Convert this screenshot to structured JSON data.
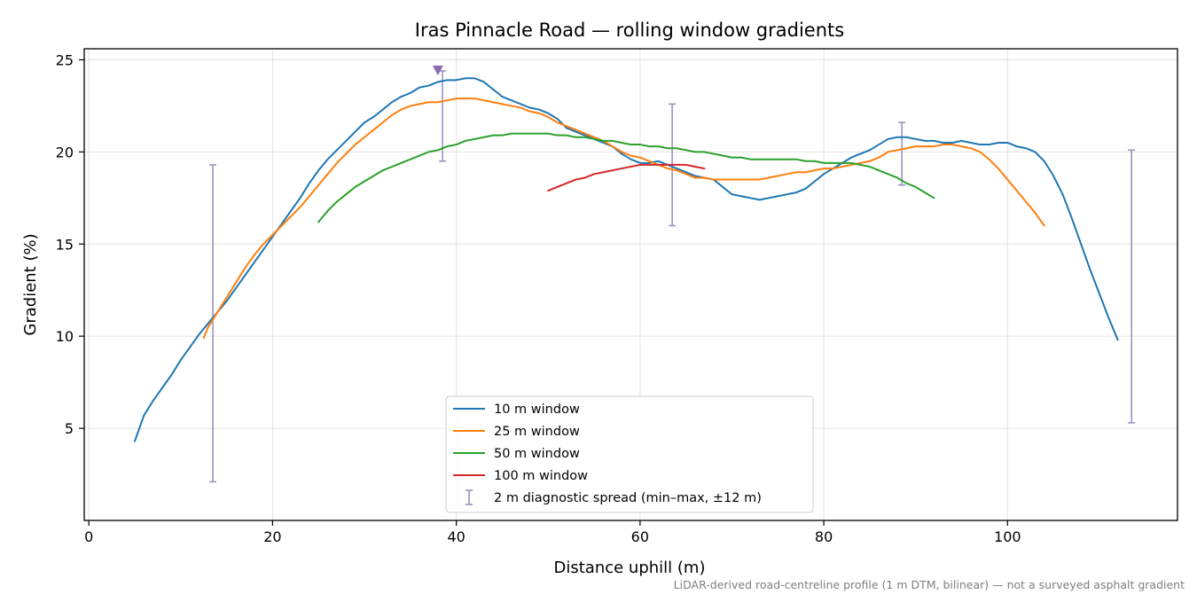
{
  "chart_data": {
    "type": "line",
    "title": "Iras Pinnacle Road — rolling window gradients",
    "xlabel": "Distance uphill (m)",
    "ylabel": "Gradient (%)",
    "xlim": [
      -0.5,
      118.5
    ],
    "ylim": [
      0.0,
      25.6
    ],
    "xticks": [
      0,
      20,
      40,
      60,
      80,
      100
    ],
    "yticks": [
      5,
      10,
      15,
      20,
      25
    ],
    "grid": true,
    "legend_position": "bottom-center",
    "caption": "LiDAR-derived road-centreline profile (1 m DTM, bilinear) — not a surveyed asphalt gradient",
    "series": [
      {
        "name": "10 m window",
        "color": "#1f77b4",
        "points": [
          [
            5,
            4.3
          ],
          [
            6,
            5.7
          ],
          [
            7,
            6.5
          ],
          [
            8,
            7.2
          ],
          [
            9,
            7.9
          ],
          [
            10,
            8.7
          ],
          [
            11,
            9.4
          ],
          [
            12,
            10.1
          ],
          [
            13,
            10.7
          ],
          [
            14,
            11.3
          ],
          [
            15,
            11.9
          ],
          [
            16,
            12.6
          ],
          [
            17,
            13.3
          ],
          [
            18,
            14.0
          ],
          [
            19,
            14.7
          ],
          [
            20,
            15.4
          ],
          [
            21,
            16.1
          ],
          [
            22,
            16.8
          ],
          [
            23,
            17.5
          ],
          [
            24,
            18.3
          ],
          [
            25,
            19.0
          ],
          [
            26,
            19.6
          ],
          [
            27,
            20.1
          ],
          [
            28,
            20.6
          ],
          [
            29,
            21.1
          ],
          [
            30,
            21.6
          ],
          [
            31,
            21.9
          ],
          [
            32,
            22.3
          ],
          [
            33,
            22.7
          ],
          [
            34,
            23.0
          ],
          [
            35,
            23.2
          ],
          [
            36,
            23.5
          ],
          [
            37,
            23.6
          ],
          [
            38,
            23.8
          ],
          [
            39,
            23.9
          ],
          [
            40,
            23.9
          ],
          [
            41,
            24.0
          ],
          [
            42,
            24.0
          ],
          [
            43,
            23.8
          ],
          [
            44,
            23.4
          ],
          [
            45,
            23.0
          ],
          [
            46,
            22.8
          ],
          [
            47,
            22.6
          ],
          [
            48,
            22.4
          ],
          [
            49,
            22.3
          ],
          [
            50,
            22.1
          ],
          [
            51,
            21.8
          ],
          [
            52,
            21.3
          ],
          [
            53,
            21.1
          ],
          [
            54,
            20.9
          ],
          [
            55,
            20.7
          ],
          [
            56,
            20.5
          ],
          [
            57,
            20.3
          ],
          [
            58,
            19.9
          ],
          [
            59,
            19.6
          ],
          [
            60,
            19.4
          ],
          [
            61,
            19.4
          ],
          [
            62,
            19.5
          ],
          [
            63,
            19.3
          ],
          [
            64,
            19.1
          ],
          [
            65,
            18.9
          ],
          [
            66,
            18.7
          ],
          [
            67,
            18.6
          ],
          [
            68,
            18.5
          ],
          [
            69,
            18.1
          ],
          [
            70,
            17.7
          ],
          [
            71,
            17.6
          ],
          [
            72,
            17.5
          ],
          [
            73,
            17.4
          ],
          [
            74,
            17.5
          ],
          [
            75,
            17.6
          ],
          [
            76,
            17.7
          ],
          [
            77,
            17.8
          ],
          [
            78,
            18.0
          ],
          [
            79,
            18.4
          ],
          [
            80,
            18.8
          ],
          [
            81,
            19.1
          ],
          [
            82,
            19.4
          ],
          [
            83,
            19.7
          ],
          [
            84,
            19.9
          ],
          [
            85,
            20.1
          ],
          [
            86,
            20.4
          ],
          [
            87,
            20.7
          ],
          [
            88,
            20.8
          ],
          [
            89,
            20.8
          ],
          [
            90,
            20.7
          ],
          [
            91,
            20.6
          ],
          [
            92,
            20.6
          ],
          [
            93,
            20.5
          ],
          [
            94,
            20.5
          ],
          [
            95,
            20.6
          ],
          [
            96,
            20.5
          ],
          [
            97,
            20.4
          ],
          [
            98,
            20.4
          ],
          [
            99,
            20.5
          ],
          [
            100,
            20.5
          ],
          [
            101,
            20.3
          ],
          [
            102,
            20.2
          ],
          [
            103,
            20.0
          ],
          [
            104,
            19.5
          ],
          [
            105,
            18.7
          ],
          [
            106,
            17.7
          ],
          [
            107,
            16.4
          ],
          [
            108,
            15.0
          ],
          [
            109,
            13.6
          ],
          [
            110,
            12.3
          ],
          [
            111,
            11.0
          ],
          [
            112,
            9.8
          ]
        ]
      },
      {
        "name": "25 m window",
        "color": "#ff7f0e",
        "points": [
          [
            12.5,
            9.9
          ],
          [
            13,
            10.5
          ],
          [
            14,
            11.3
          ],
          [
            15,
            12.1
          ],
          [
            16,
            12.9
          ],
          [
            17,
            13.7
          ],
          [
            18,
            14.4
          ],
          [
            19,
            15.0
          ],
          [
            20,
            15.5
          ],
          [
            21,
            16.0
          ],
          [
            22,
            16.5
          ],
          [
            23,
            17.0
          ],
          [
            24,
            17.6
          ],
          [
            25,
            18.2
          ],
          [
            26,
            18.8
          ],
          [
            27,
            19.4
          ],
          [
            28,
            19.9
          ],
          [
            29,
            20.4
          ],
          [
            30,
            20.8
          ],
          [
            31,
            21.2
          ],
          [
            32,
            21.6
          ],
          [
            33,
            22.0
          ],
          [
            34,
            22.3
          ],
          [
            35,
            22.5
          ],
          [
            36,
            22.6
          ],
          [
            37,
            22.7
          ],
          [
            38,
            22.7
          ],
          [
            39,
            22.8
          ],
          [
            40,
            22.9
          ],
          [
            41,
            22.9
          ],
          [
            42,
            22.9
          ],
          [
            43,
            22.8
          ],
          [
            44,
            22.7
          ],
          [
            45,
            22.6
          ],
          [
            46,
            22.5
          ],
          [
            47,
            22.4
          ],
          [
            48,
            22.2
          ],
          [
            49,
            22.1
          ],
          [
            50,
            21.9
          ],
          [
            51,
            21.6
          ],
          [
            52,
            21.4
          ],
          [
            53,
            21.2
          ],
          [
            54,
            21.0
          ],
          [
            55,
            20.8
          ],
          [
            56,
            20.6
          ],
          [
            57,
            20.3
          ],
          [
            58,
            20.0
          ],
          [
            59,
            19.8
          ],
          [
            60,
            19.7
          ],
          [
            61,
            19.5
          ],
          [
            62,
            19.3
          ],
          [
            63,
            19.1
          ],
          [
            64,
            19.0
          ],
          [
            65,
            18.8
          ],
          [
            66,
            18.6
          ],
          [
            67,
            18.6
          ],
          [
            68,
            18.5
          ],
          [
            69,
            18.5
          ],
          [
            70,
            18.5
          ],
          [
            71,
            18.5
          ],
          [
            72,
            18.5
          ],
          [
            73,
            18.5
          ],
          [
            74,
            18.6
          ],
          [
            75,
            18.7
          ],
          [
            76,
            18.8
          ],
          [
            77,
            18.9
          ],
          [
            78,
            18.9
          ],
          [
            79,
            19.0
          ],
          [
            80,
            19.1
          ],
          [
            81,
            19.1
          ],
          [
            82,
            19.2
          ],
          [
            83,
            19.3
          ],
          [
            84,
            19.4
          ],
          [
            85,
            19.5
          ],
          [
            86,
            19.7
          ],
          [
            87,
            20.0
          ],
          [
            88,
            20.1
          ],
          [
            89,
            20.2
          ],
          [
            90,
            20.3
          ],
          [
            91,
            20.3
          ],
          [
            92,
            20.3
          ],
          [
            93,
            20.4
          ],
          [
            94,
            20.4
          ],
          [
            95,
            20.3
          ],
          [
            96,
            20.2
          ],
          [
            97,
            20.0
          ],
          [
            98,
            19.6
          ],
          [
            99,
            19.1
          ],
          [
            100,
            18.5
          ],
          [
            101,
            17.9
          ],
          [
            102,
            17.3
          ],
          [
            103,
            16.7
          ],
          [
            104,
            16.0
          ]
        ]
      },
      {
        "name": "50 m window",
        "color": "#2ca02c",
        "points": [
          [
            25,
            16.2
          ],
          [
            26,
            16.8
          ],
          [
            27,
            17.3
          ],
          [
            28,
            17.7
          ],
          [
            29,
            18.1
          ],
          [
            30,
            18.4
          ],
          [
            31,
            18.7
          ],
          [
            32,
            19.0
          ],
          [
            33,
            19.2
          ],
          [
            34,
            19.4
          ],
          [
            35,
            19.6
          ],
          [
            36,
            19.8
          ],
          [
            37,
            20.0
          ],
          [
            38,
            20.1
          ],
          [
            39,
            20.3
          ],
          [
            40,
            20.4
          ],
          [
            41,
            20.6
          ],
          [
            42,
            20.7
          ],
          [
            43,
            20.8
          ],
          [
            44,
            20.9
          ],
          [
            45,
            20.9
          ],
          [
            46,
            21.0
          ],
          [
            47,
            21.0
          ],
          [
            48,
            21.0
          ],
          [
            49,
            21.0
          ],
          [
            50,
            21.0
          ],
          [
            51,
            20.9
          ],
          [
            52,
            20.9
          ],
          [
            53,
            20.8
          ],
          [
            54,
            20.8
          ],
          [
            55,
            20.7
          ],
          [
            56,
            20.6
          ],
          [
            57,
            20.6
          ],
          [
            58,
            20.5
          ],
          [
            59,
            20.4
          ],
          [
            60,
            20.4
          ],
          [
            61,
            20.3
          ],
          [
            62,
            20.3
          ],
          [
            63,
            20.2
          ],
          [
            64,
            20.2
          ],
          [
            65,
            20.1
          ],
          [
            66,
            20.0
          ],
          [
            67,
            20.0
          ],
          [
            68,
            19.9
          ],
          [
            69,
            19.8
          ],
          [
            70,
            19.7
          ],
          [
            71,
            19.7
          ],
          [
            72,
            19.6
          ],
          [
            73,
            19.6
          ],
          [
            74,
            19.6
          ],
          [
            75,
            19.6
          ],
          [
            76,
            19.6
          ],
          [
            77,
            19.6
          ],
          [
            78,
            19.5
          ],
          [
            79,
            19.5
          ],
          [
            80,
            19.4
          ],
          [
            81,
            19.4
          ],
          [
            82,
            19.4
          ],
          [
            83,
            19.4
          ],
          [
            84,
            19.3
          ],
          [
            85,
            19.2
          ],
          [
            86,
            19.0
          ],
          [
            87,
            18.8
          ],
          [
            88,
            18.6
          ],
          [
            89,
            18.3
          ],
          [
            90,
            18.1
          ],
          [
            91,
            17.8
          ],
          [
            92,
            17.5
          ]
        ]
      },
      {
        "name": "100 m window",
        "color": "#d62728",
        "points": [
          [
            50,
            17.9
          ],
          [
            51,
            18.1
          ],
          [
            52,
            18.3
          ],
          [
            53,
            18.5
          ],
          [
            54,
            18.6
          ],
          [
            55,
            18.8
          ],
          [
            56,
            18.9
          ],
          [
            57,
            19.0
          ],
          [
            58,
            19.1
          ],
          [
            59,
            19.2
          ],
          [
            60,
            19.3
          ],
          [
            61,
            19.3
          ],
          [
            62,
            19.3
          ],
          [
            63,
            19.3
          ],
          [
            64,
            19.3
          ],
          [
            65,
            19.3
          ],
          [
            66,
            19.2
          ],
          [
            67,
            19.1
          ]
        ]
      }
    ],
    "diagnostic_spread": {
      "name": "2 m diagnostic spread (min–max, ±12 m)",
      "color": "#9b94bf",
      "bars": [
        {
          "x": 13.5,
          "min": 2.1,
          "max": 19.3
        },
        {
          "x": 38.5,
          "min": 19.5,
          "max": 24.4
        },
        {
          "x": 63.5,
          "min": 16.0,
          "max": 22.6
        },
        {
          "x": 88.5,
          "min": 18.2,
          "max": 21.6
        },
        {
          "x": 113.5,
          "min": 5.3,
          "max": 20.1
        }
      ]
    },
    "peak_marker": {
      "x": 38.0,
      "y": 24.4,
      "color": "#8c6bb1"
    }
  }
}
